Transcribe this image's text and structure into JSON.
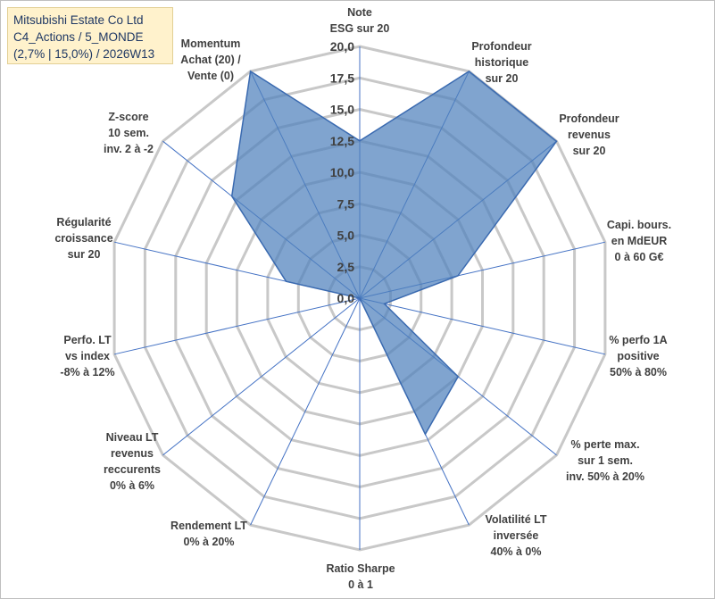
{
  "title_box": {
    "line1": "Mitsubishi Estate Co Ltd",
    "line2": "C4_Actions / 5_MONDE",
    "line3": "(2,7% | 15,0%) / 2026W13"
  },
  "chart_data": {
    "type": "radar",
    "title": "Mitsubishi Estate Co Ltd",
    "rlim": [
      0,
      20
    ],
    "ticks": [
      0,
      2.5,
      5,
      7.5,
      10,
      12.5,
      15,
      17.5,
      20
    ],
    "tick_labels": [
      "0,0",
      "2,5",
      "5,0",
      "7,5",
      "10,0",
      "12,5",
      "15,0",
      "17,5",
      "20,0"
    ],
    "grid": true,
    "axes": [
      {
        "lines": [
          "Note",
          "ESG sur 20"
        ],
        "value": 12.5
      },
      {
        "lines": [
          "Profondeur",
          "historique",
          "sur 20"
        ],
        "value": 20
      },
      {
        "lines": [
          "Profondeur",
          "revenus",
          "sur 20"
        ],
        "value": 20
      },
      {
        "lines": [
          "Capi. bours.",
          "en MdEUR",
          "0 à 60 G€"
        ],
        "value": 8
      },
      {
        "lines": [
          "% perfo 1A",
          "positive",
          "50% à 80%"
        ],
        "value": 2
      },
      {
        "lines": [
          "% perte max.",
          "sur 1 sem.",
          "inv. 50% à 20%"
        ],
        "value": 10
      },
      {
        "lines": [
          "Volatilité LT",
          "inversée",
          "40% à 0%"
        ],
        "value": 12
      },
      {
        "lines": [
          "Ratio Sharpe",
          "0 à 1"
        ],
        "value": 0
      },
      {
        "lines": [
          "Rendement LT",
          "0% à 20%"
        ],
        "value": 0
      },
      {
        "lines": [
          "Niveau LT",
          "revenus",
          "reccurents",
          "0% à 6%"
        ],
        "value": 0
      },
      {
        "lines": [
          "Perfo. LT",
          "vs index",
          "-8% à 12%"
        ],
        "value": 0
      },
      {
        "lines": [
          "Régularité",
          "croissance",
          "sur 20"
        ],
        "value": 6
      },
      {
        "lines": [
          "Z-score",
          "10 sem.",
          "inv. 2 à -2"
        ],
        "value": 13
      },
      {
        "lines": [
          "Momentum",
          "Achat (20) /",
          "Vente (0)"
        ],
        "value": 20
      }
    ],
    "series": [
      {
        "name": "Mitsubishi Estate Co Ltd",
        "color": "#4f81bd"
      }
    ],
    "colors": {
      "grid": "#c8c8c8",
      "spoke": "#4472c4",
      "fill": "#4f81bd",
      "fill_opacity": 0.72,
      "outline": "#3a6ab0",
      "title_text": "#1f3864",
      "title_bg": "#fff2cc"
    }
  }
}
